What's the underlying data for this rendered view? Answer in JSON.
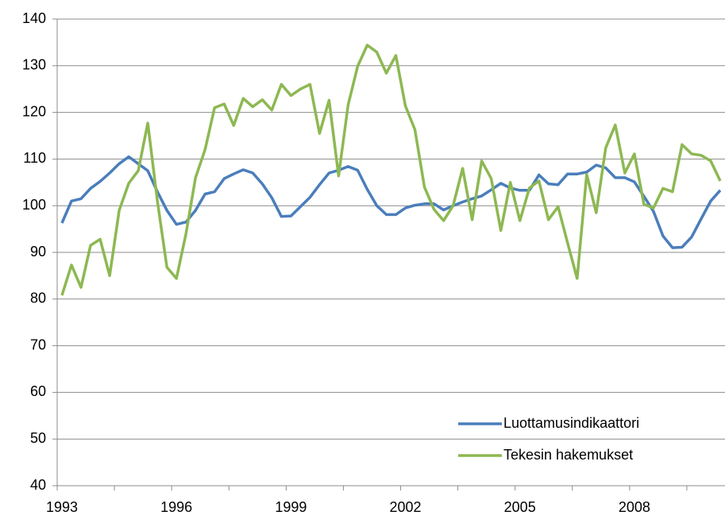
{
  "chart_data": {
    "type": "line",
    "categories": [
      "1993",
      null,
      null,
      null,
      null,
      null,
      null,
      null,
      null,
      null,
      null,
      null,
      "1996",
      null,
      null,
      null,
      null,
      null,
      null,
      null,
      null,
      null,
      null,
      null,
      "1999",
      null,
      null,
      null,
      null,
      null,
      null,
      null,
      null,
      null,
      null,
      null,
      "2002",
      null,
      null,
      null,
      null,
      null,
      null,
      null,
      null,
      null,
      null,
      null,
      "2005",
      null,
      null,
      null,
      null,
      null,
      null,
      null,
      null,
      null,
      null,
      null,
      "2008",
      null,
      null,
      null,
      null,
      null,
      null,
      null,
      null,
      null
    ],
    "series": [
      {
        "name": "Luottamusindikaattori",
        "color": "#4a7ebb",
        "values": [
          96.3,
          101,
          101.5,
          103.7,
          105.2,
          107,
          109,
          110.5,
          109,
          107.5,
          103,
          99,
          96,
          96.5,
          99,
          102.5,
          103,
          105.8,
          106.8,
          107.7,
          107,
          104.7,
          101.7,
          97.7,
          97.8,
          99.8,
          101.8,
          104.5,
          107,
          107.6,
          108.4,
          107.6,
          103.5,
          100,
          98.1,
          98.1,
          99.5,
          100.1,
          100.4,
          100.4,
          99.1,
          100,
          100.8,
          101.5,
          102.1,
          103.4,
          104.8,
          103.8,
          103.3,
          103.3,
          106.6,
          104.7,
          104.5,
          106.8,
          106.8,
          107.2,
          108.7,
          108.1,
          106,
          106,
          105.1,
          102,
          98.8,
          93.5,
          91,
          91.1,
          93.3,
          97.2,
          101,
          103.3
        ]
      },
      {
        "name": "Tekesin hakemukset",
        "color": "#8db852",
        "values": [
          80.8,
          87.3,
          82.5,
          91.5,
          92.8,
          85,
          99,
          104.8,
          107.5,
          117.7,
          101,
          86.8,
          84.4,
          94,
          106,
          112,
          121,
          121.8,
          117.2,
          123,
          121.2,
          122.7,
          120.5,
          126,
          123.6,
          125,
          126,
          115.5,
          122.6,
          106.4,
          121.6,
          129.9,
          134.4,
          132.9,
          128.4,
          132.2,
          121.4,
          116.3,
          104,
          99.2,
          96.8,
          100,
          108,
          97,
          109.6,
          105.8,
          94.7,
          105,
          96.8,
          103.8,
          105.3,
          97,
          99.8,
          92,
          84.4,
          106.7,
          98.5,
          112.4,
          117.3,
          107,
          111.1,
          100.3,
          99.5,
          103.7,
          103,
          113.1,
          111.1,
          110.8,
          109.6,
          105.3
        ]
      }
    ],
    "ylim": [
      40,
      140
    ],
    "yticks": [
      40,
      50,
      60,
      70,
      80,
      90,
      100,
      110,
      120,
      130,
      140
    ],
    "grid": true,
    "legend": "lower right"
  }
}
